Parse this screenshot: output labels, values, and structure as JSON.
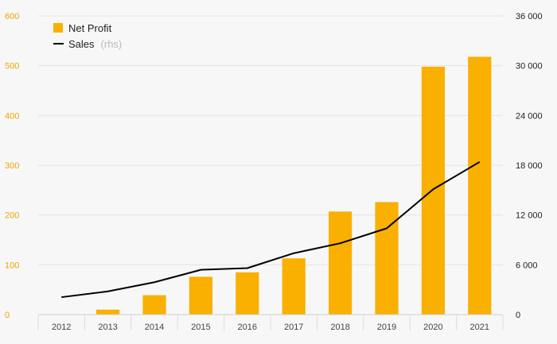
{
  "chart_data": {
    "type": "bar+line",
    "categories": [
      "2012",
      "2013",
      "2014",
      "2015",
      "2016",
      "2017",
      "2018",
      "2019",
      "2020",
      "2021"
    ],
    "series": [
      {
        "name": "Net Profit",
        "type": "bar",
        "axis": "left",
        "color": "#f9b000",
        "values": [
          0,
          10,
          39,
          76,
          85,
          113,
          207,
          226,
          498,
          518
        ]
      },
      {
        "name": "Sales",
        "type": "line",
        "axis": "right",
        "color": "#000000",
        "values": [
          2100,
          2800,
          3900,
          5400,
          5600,
          7400,
          8600,
          10400,
          15100,
          18400
        ]
      }
    ],
    "legend": {
      "bar_label": "Net Profit",
      "line_label": "Sales",
      "line_suffix": "(rhs)",
      "placement": "top-left"
    },
    "y_left": {
      "ylim": [
        0,
        600
      ],
      "ticks": [
        0,
        100,
        200,
        300,
        400,
        500,
        600
      ],
      "tick_labels": [
        "0",
        "100",
        "200",
        "300",
        "400",
        "500",
        "600"
      ],
      "color": "#f0a500"
    },
    "y_right": {
      "ylim": [
        0,
        36000
      ],
      "ticks": [
        0,
        6000,
        12000,
        18000,
        24000,
        30000,
        36000
      ],
      "tick_labels": [
        "0",
        "6 000",
        "12 000",
        "18 000",
        "24 000",
        "30 000",
        "36 000"
      ]
    },
    "grid": true
  }
}
